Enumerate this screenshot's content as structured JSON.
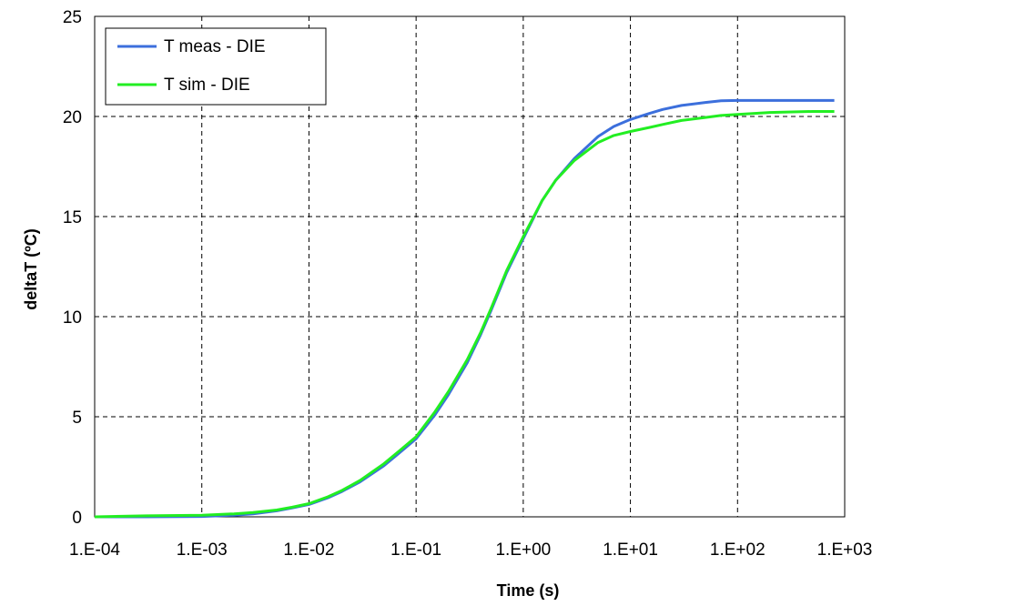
{
  "chart_data": {
    "type": "line",
    "title": "",
    "xlabel": "Time (s)",
    "ylabel": "deltaT (ºC)",
    "x_scale": "log",
    "xlim": [
      0.0001,
      1000
    ],
    "ylim": [
      0,
      25
    ],
    "x_ticks": [
      "1.E-04",
      "1.E-03",
      "1.E-02",
      "1.E-01",
      "1.E+00",
      "1.E+01",
      "1.E+02",
      "1.E+03"
    ],
    "y_ticks": [
      "0",
      "5",
      "10",
      "15",
      "20",
      "25"
    ],
    "grid": true,
    "legend_position": "top-left",
    "series": [
      {
        "name": "T meas - DIE",
        "color": "#3c6fdc",
        "x": [
          0.0001,
          0.0003,
          0.001,
          0.002,
          0.003,
          0.005,
          0.007,
          0.01,
          0.015,
          0.02,
          0.03,
          0.05,
          0.07,
          0.1,
          0.15,
          0.2,
          0.3,
          0.4,
          0.5,
          0.7,
          1,
          1.5,
          2,
          3,
          5,
          7,
          10,
          15,
          20,
          30,
          50,
          70,
          100,
          200,
          500,
          800
        ],
        "y": [
          0,
          0,
          0.02,
          0.08,
          0.15,
          0.3,
          0.45,
          0.62,
          0.95,
          1.25,
          1.75,
          2.55,
          3.2,
          3.9,
          5.1,
          6.1,
          7.7,
          9.1,
          10.3,
          12.2,
          13.9,
          15.8,
          16.8,
          17.9,
          19.0,
          19.5,
          19.85,
          20.15,
          20.35,
          20.55,
          20.7,
          20.78,
          20.8,
          20.8,
          20.8,
          20.8
        ]
      },
      {
        "name": "T sim - DIE",
        "color": "#22ee22",
        "x": [
          0.0001,
          0.0003,
          0.001,
          0.002,
          0.003,
          0.005,
          0.007,
          0.01,
          0.015,
          0.02,
          0.03,
          0.05,
          0.07,
          0.1,
          0.15,
          0.2,
          0.3,
          0.4,
          0.5,
          0.7,
          1,
          1.5,
          2,
          3,
          5,
          7,
          10,
          15,
          20,
          30,
          50,
          70,
          100,
          200,
          500,
          800
        ],
        "y": [
          0,
          0.05,
          0.08,
          0.15,
          0.22,
          0.34,
          0.48,
          0.66,
          1.0,
          1.3,
          1.82,
          2.65,
          3.3,
          4.0,
          5.25,
          6.25,
          7.85,
          9.2,
          10.4,
          12.3,
          14.0,
          15.8,
          16.8,
          17.8,
          18.7,
          19.05,
          19.25,
          19.45,
          19.6,
          19.8,
          19.95,
          20.05,
          20.1,
          20.2,
          20.25,
          20.25
        ]
      }
    ]
  }
}
